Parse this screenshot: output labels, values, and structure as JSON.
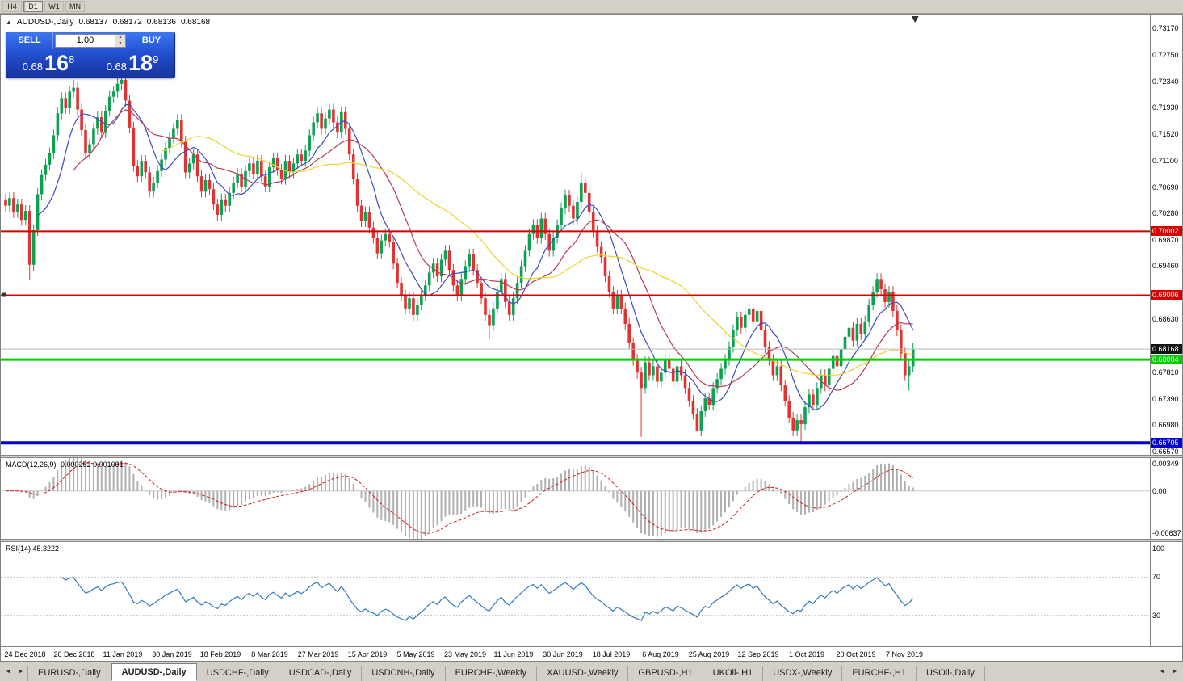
{
  "toolbar": {
    "timeframes": [
      {
        "label": "H4",
        "active": false
      },
      {
        "label": "D1",
        "active": true
      },
      {
        "label": "W1",
        "active": false
      },
      {
        "label": "MN",
        "active": false
      }
    ]
  },
  "chart": {
    "title": {
      "symbol": "AUDUSD-,Daily",
      "open": "0.68137",
      "high": "0.68172",
      "low": "0.68136",
      "close": "0.68168"
    },
    "one_click": {
      "sell_label": "SELL",
      "buy_label": "BUY",
      "volume": "1.00",
      "sell_price": {
        "prefix": "0.68",
        "big": "16",
        "sup": "8"
      },
      "buy_price": {
        "prefix": "0.68",
        "big": "18",
        "sup": "9"
      }
    }
  },
  "chart_data": {
    "type": "candlestick",
    "symbol": "AUDUSD-",
    "timeframe": "Daily",
    "ohlc_current": {
      "open": 0.68137,
      "high": 0.68172,
      "low": 0.68136,
      "close": 0.68168
    },
    "price_range": {
      "max": 0.7338,
      "min": 0.6652
    },
    "y_axis_ticks": [
      "0.73170",
      "0.72750",
      "0.72340",
      "0.71930",
      "0.71520",
      "0.71100",
      "0.70690",
      "0.70280",
      "0.69870",
      "0.69460",
      "0.68630",
      "0.67810",
      "0.67390",
      "0.66980",
      "0.66570"
    ],
    "x_axis_labels": [
      "24 Dec 2018",
      "26 Dec 2018",
      "11 Jan 2019",
      "30 Jan 2019",
      "18 Feb 2019",
      "8 Mar 2019",
      "27 Mar 2019",
      "15 Apr 2019",
      "5 May 2019",
      "23 May 2019",
      "11 Jun 2019",
      "30 Jun 2019",
      "18 Jul 2019",
      "6 Aug 2019",
      "25 Aug 2019",
      "12 Sep 2019",
      "1 Oct 2019",
      "20 Oct 2019",
      "7 Nov 2019"
    ],
    "levels": [
      {
        "value": 0.70002,
        "label": "0.70002",
        "color": "#d40000",
        "width": 2
      },
      {
        "value": 0.69006,
        "label": "0.69006",
        "color": "#d40000",
        "width": 2,
        "handle": true
      },
      {
        "value": 0.68004,
        "label": "0.68004",
        "color": "#00ce00",
        "width": 3
      },
      {
        "value": 0.66705,
        "label": "0.66705",
        "color": "#0000c8",
        "width": 4
      }
    ],
    "current_price": {
      "value": 0.68168,
      "label": "0.68168"
    },
    "candles_close": [
      0.704,
      0.7052,
      0.703,
      0.7042,
      0.7018,
      0.7032,
      0.6948,
      0.7002,
      0.7058,
      0.7088,
      0.7104,
      0.7122,
      0.715,
      0.7184,
      0.7208,
      0.7192,
      0.7218,
      0.7224,
      0.719,
      0.7158,
      0.7122,
      0.7136,
      0.716,
      0.7178,
      0.7154,
      0.7188,
      0.721,
      0.7218,
      0.723,
      0.7236,
      0.7204,
      0.7162,
      0.7102,
      0.7086,
      0.711,
      0.7092,
      0.7062,
      0.7076,
      0.7094,
      0.7112,
      0.713,
      0.7146,
      0.716,
      0.7174,
      0.714,
      0.7092,
      0.7106,
      0.712,
      0.7086,
      0.7062,
      0.708,
      0.7066,
      0.7042,
      0.7026,
      0.705,
      0.704,
      0.706,
      0.7076,
      0.709,
      0.707,
      0.7094,
      0.7106,
      0.709,
      0.711,
      0.7086,
      0.707,
      0.71,
      0.7114,
      0.7096,
      0.7082,
      0.711,
      0.7092,
      0.7106,
      0.712,
      0.711,
      0.7126,
      0.715,
      0.717,
      0.7184,
      0.716,
      0.7176,
      0.719,
      0.717,
      0.7154,
      0.7186,
      0.716,
      0.712,
      0.7082,
      0.704,
      0.7016,
      0.703,
      0.7006,
      0.699,
      0.6966,
      0.6986,
      0.6996,
      0.6984,
      0.695,
      0.692,
      0.69,
      0.688,
      0.6896,
      0.687,
      0.6886,
      0.69,
      0.6916,
      0.6936,
      0.695,
      0.693,
      0.6956,
      0.697,
      0.694,
      0.6916,
      0.69,
      0.6926,
      0.6946,
      0.6964,
      0.694,
      0.692,
      0.6896,
      0.687,
      0.6854,
      0.688,
      0.6906,
      0.6926,
      0.689,
      0.687,
      0.6896,
      0.692,
      0.6946,
      0.697,
      0.6996,
      0.701,
      0.699,
      0.702,
      0.6996,
      0.697,
      0.699,
      0.701,
      0.7036,
      0.7056,
      0.704,
      0.702,
      0.7046,
      0.7076,
      0.706,
      0.703,
      0.7,
      0.6976,
      0.696,
      0.693,
      0.6906,
      0.688,
      0.69,
      0.688,
      0.6856,
      0.6826,
      0.68,
      0.678,
      0.6756,
      0.6796,
      0.6776,
      0.679,
      0.6766,
      0.678,
      0.68,
      0.6786,
      0.6766,
      0.679,
      0.6776,
      0.6756,
      0.6736,
      0.6716,
      0.669,
      0.672,
      0.674,
      0.673,
      0.6756,
      0.677,
      0.6786,
      0.68,
      0.682,
      0.6846,
      0.6866,
      0.685,
      0.687,
      0.688,
      0.686,
      0.6876,
      0.6846,
      0.682,
      0.68,
      0.6776,
      0.679,
      0.676,
      0.6736,
      0.671,
      0.669,
      0.6706,
      0.67,
      0.6726,
      0.6746,
      0.673,
      0.6756,
      0.6776,
      0.676,
      0.6786,
      0.6806,
      0.679,
      0.6816,
      0.6836,
      0.685,
      0.683,
      0.6856,
      0.684,
      0.686,
      0.6886,
      0.6906,
      0.6926,
      0.691,
      0.689,
      0.6906,
      0.6876,
      0.6846,
      0.681,
      0.6776,
      0.679,
      0.6817
    ],
    "wick_overrides": [
      {
        "i": 6,
        "low": 0.6925
      },
      {
        "i": 17,
        "high": 0.7236
      },
      {
        "i": 29,
        "high": 0.7244
      },
      {
        "i": 121,
        "low": 0.6832
      },
      {
        "i": 144,
        "high": 0.7092
      },
      {
        "i": 159,
        "low": 0.668
      },
      {
        "i": 173,
        "low": 0.6688
      },
      {
        "i": 199,
        "low": 0.6672
      },
      {
        "i": 226,
        "low": 0.6752
      }
    ],
    "moving_averages": [
      {
        "period": 9,
        "color": "#3a49c0"
      },
      {
        "period": 18,
        "color": "#b53a55"
      },
      {
        "period": 40,
        "color": "#ecd42a"
      }
    ],
    "colors": {
      "up": "#0ca153",
      "down": "#e03333",
      "macd_hist": "#b0b0b0",
      "macd_signal": "#cc2222",
      "rsi": "#3079c0",
      "bid_line": "#b8b8b8"
    },
    "macd": {
      "label": "MACD(12,26,9)",
      "main_value": "-0.000252",
      "signal_value": "0.001001",
      "fast": 12,
      "slow": 26,
      "signal": 9,
      "axis_labels": [
        "0.00349",
        "0.00",
        "-0.00637"
      ],
      "range": {
        "max": 0.004,
        "min": -0.0058
      }
    },
    "rsi": {
      "label": "RSI(14)",
      "current": "45.3222",
      "period": 14,
      "levels": [
        70,
        30
      ],
      "axis_labels": [
        "100",
        "70",
        "30"
      ]
    }
  },
  "tabs": {
    "items": [
      "EURUSD-,Daily",
      "AUDUSD-,Daily",
      "USDCHF-,Daily",
      "USDCAD-,Daily",
      "USDCNH-,Daily",
      "EURCHF-,Weekly",
      "XAUUSD-,Weekly",
      "GBPUSD-,H1",
      "UKOil-,H1",
      "USDX-,Weekly",
      "EURCHF-,H1",
      "USOil-,Daily"
    ],
    "active": "AUDUSD-,Daily"
  }
}
